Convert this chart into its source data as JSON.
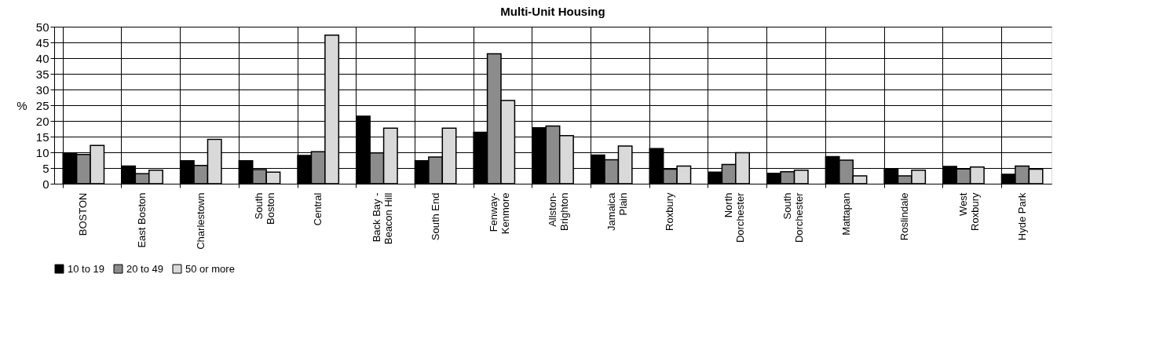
{
  "chart_data": {
    "type": "bar",
    "title": "Multi-Unit Housing",
    "ylabel": "%",
    "categories": [
      "BOSTON",
      "East Boston",
      "Charlestown",
      "South Boston",
      "Central",
      "Back Bay - Beacon Hill",
      "South End",
      "Fenway-Kenmore",
      "Allston-Brighton",
      "Jamaica Plain",
      "Roxbury",
      "North Dorchester",
      "South Dorchester",
      "Mattapan",
      "Roslindale",
      "West Roxbury",
      "Hyde Park"
    ],
    "series": [
      {
        "name": "10 to 19",
        "color": "#000000",
        "values": [
          9.7,
          5.6,
          7.3,
          7.3,
          9.0,
          21.5,
          7.3,
          16.4,
          17.8,
          9.1,
          11.2,
          3.7,
          3.3,
          8.6,
          4.7,
          5.5,
          3.0
        ]
      },
      {
        "name": "20 to 49",
        "color": "#8c8c8c",
        "values": [
          9.3,
          3.2,
          5.8,
          4.5,
          10.2,
          9.8,
          8.5,
          41.4,
          18.4,
          7.6,
          4.6,
          6.1,
          3.8,
          7.5,
          2.5,
          4.7,
          5.6
        ]
      },
      {
        "name": "50 or more",
        "color": "#d9d9d9",
        "values": [
          12.2,
          4.3,
          14.1,
          3.7,
          47.3,
          17.7,
          17.7,
          26.5,
          15.3,
          12.0,
          5.6,
          9.9,
          4.3,
          2.5,
          4.3,
          5.3,
          4.6
        ]
      }
    ],
    "ylim": [
      0,
      50
    ],
    "yticks": [
      0,
      5,
      10,
      15,
      20,
      25,
      30,
      35,
      40,
      45,
      50
    ],
    "grid": true,
    "legend": "bottom"
  }
}
